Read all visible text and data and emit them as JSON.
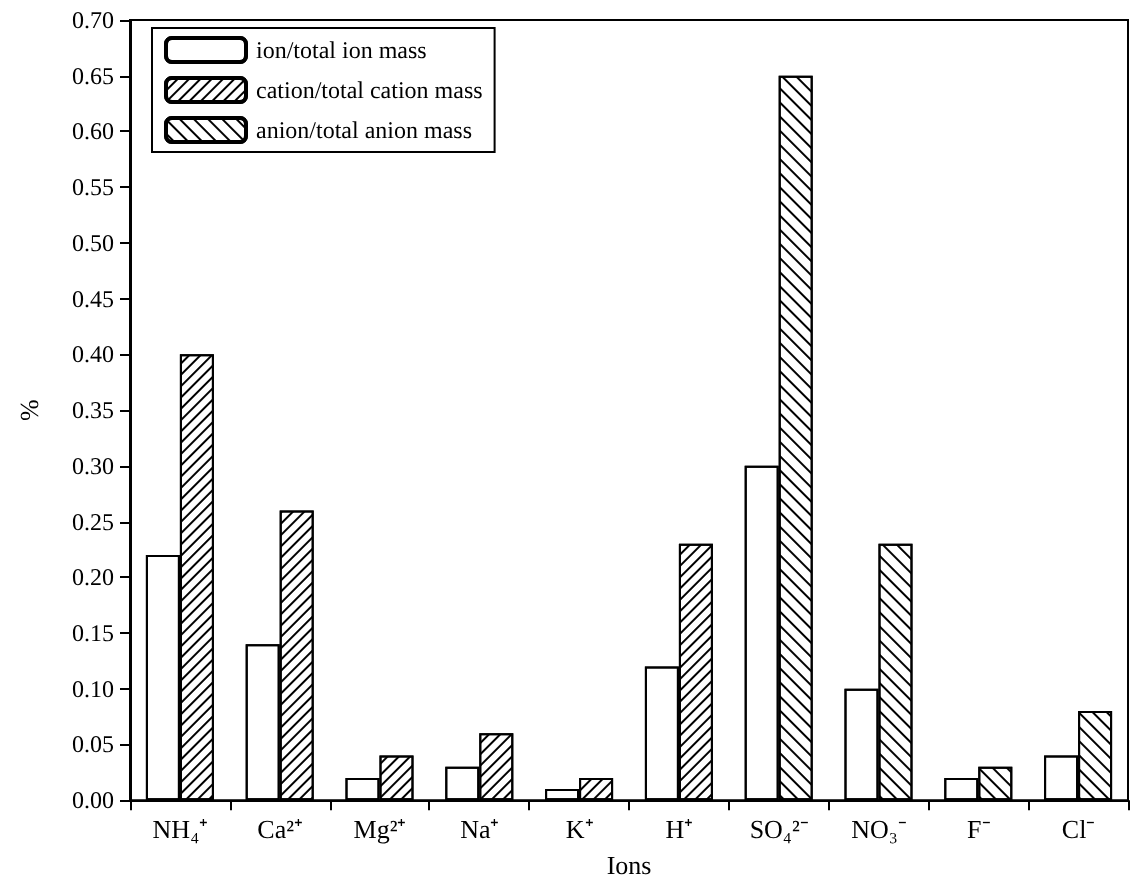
{
  "chart_data": {
    "type": "bar",
    "xlabel": "Ions",
    "ylabel": "%",
    "categories": [
      "NH₄⁺",
      "Ca²⁺",
      "Mg²⁺",
      "Na⁺",
      "K⁺",
      "H⁺",
      "SO₄²⁻",
      "NO₃⁻",
      "F⁻",
      "Cl⁻"
    ],
    "series": [
      {
        "name": "ion/total ion mass",
        "color": "#ffffff",
        "values": [
          0.22,
          0.14,
          0.02,
          0.03,
          0.01,
          0.12,
          0.3,
          0.1,
          0.02,
          0.04
        ]
      },
      {
        "name": "cation/total cation mass",
        "color": "#ffffff",
        "values": [
          0.4,
          0.26,
          0.04,
          0.06,
          0.02,
          0.23,
          null,
          null,
          null,
          null
        ]
      },
      {
        "name": "anion/total anion mass",
        "color": "#ffffff",
        "values": [
          null,
          null,
          null,
          null,
          null,
          null,
          0.65,
          0.23,
          0.03,
          0.08
        ]
      }
    ],
    "ylim": [
      0,
      0.7
    ],
    "yticks": [
      {
        "value": 0,
        "label": "0.00"
      },
      {
        "value": 0.05,
        "label": "0.05"
      },
      {
        "value": 0.1,
        "label": "0.10"
      },
      {
        "value": 0.15,
        "label": "0.15"
      },
      {
        "value": 0.2,
        "label": "0.20"
      },
      {
        "value": 0.25,
        "label": "0.25"
      },
      {
        "value": 0.3,
        "label": "0.30"
      },
      {
        "value": 0.35,
        "label": "0.35"
      },
      {
        "value": 0.4,
        "label": "0.40"
      },
      {
        "value": 0.45,
        "label": "0.45"
      },
      {
        "value": 0.5,
        "label": "0.50"
      },
      {
        "value": 0.55,
        "label": "0.55"
      },
      {
        "value": 0.6,
        "label": "0.60"
      },
      {
        "value": 0.65,
        "label": "0.65"
      },
      {
        "value": 0.7,
        "label": "0.70"
      }
    ],
    "grid": false,
    "legend": "top left"
  }
}
